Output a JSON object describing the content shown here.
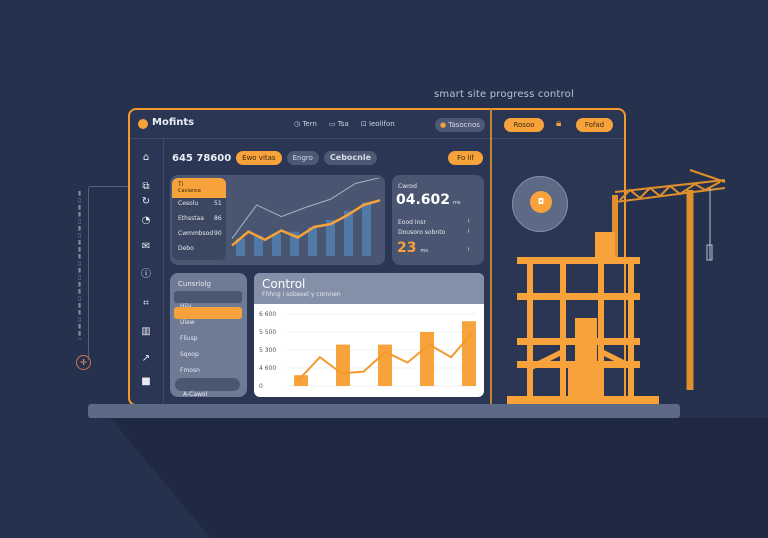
{
  "tagline": "smart site progress control",
  "header": {
    "logo": "Mofints",
    "nav": [
      {
        "icon": "clock-icon",
        "label": "Tern"
      },
      {
        "icon": "chat-icon",
        "label": "Tsa"
      },
      {
        "icon": "lock-icon",
        "label": "Ieolifon"
      }
    ],
    "profile_label": "Tasocnos",
    "right_left": "Rosoo",
    "right_right": "Fofad"
  },
  "toolbar": {
    "value": "645 78600",
    "orange": "Ewo vitas",
    "gray": "Engro",
    "label": "Cebocnle",
    "action": "Fo lif"
  },
  "sidebar": {
    "icons": [
      "home-icon",
      "copy-icon",
      "refresh-icon",
      "clock-icon",
      "mail-icon",
      "alert-icon",
      "frame-icon",
      "grid-icon",
      "chart-icon",
      "folder-icon"
    ]
  },
  "top_card": {
    "menu": [
      {
        "label": "Ti",
        "sub": "Caviance"
      },
      {
        "label": "Cesolu",
        "value": "51"
      },
      {
        "label": "Ethsstaa",
        "value": "86"
      },
      {
        "label": "Cwmmbsod",
        "value": "90"
      },
      {
        "label": "Debo",
        "value": ""
      }
    ],
    "chart": {
      "bars": [
        0.3,
        0.35,
        0.38,
        0.42,
        0.5,
        0.62,
        0.78,
        0.92
      ],
      "orange_line": [
        0.18,
        0.42,
        0.28,
        0.44,
        0.32,
        0.5,
        0.55,
        0.7,
        0.88,
        0.96
      ],
      "gray_line": [
        0.3,
        0.88,
        0.68,
        0.84,
        0.98,
        1.25,
        1.35
      ],
      "color_bar": "#4f7aa6",
      "color_line": "#f7a23a"
    }
  },
  "stat_card": {
    "label": "Cwrod",
    "value": "04.602",
    "unit": "ms",
    "row1": "Eood Insr",
    "row2": "Dousoro sobnto",
    "big": "23",
    "big_unit": "ms"
  },
  "list_card": {
    "title": "Cunsriolg",
    "items": [
      "Hiiy",
      "Ulaw",
      "Fliusp",
      "Sqoop",
      "Fmosn"
    ],
    "active": 1,
    "button": "A-Cawol"
  },
  "control_card": {
    "title": "Control",
    "subtitle": "Fhhng i sobsoel y cornnen",
    "chart": {
      "type": "bar+line",
      "y_ticks": [
        "6 600",
        "5 500",
        "5 300",
        "4 600",
        "0"
      ],
      "bars": [
        0.6,
        2.3,
        2.3,
        3.0,
        3.6
      ],
      "line": [
        0.3,
        1.6,
        0.7,
        0.8,
        1.9,
        1.3,
        2.3,
        1.6,
        3.0
      ],
      "ylim": [
        0,
        4
      ],
      "color": "#f7a23a"
    }
  },
  "target_icon": "crosshair-icon",
  "colors": {
    "background": "#26324d",
    "accent": "#f7a23a",
    "panel": "#4a5671"
  }
}
